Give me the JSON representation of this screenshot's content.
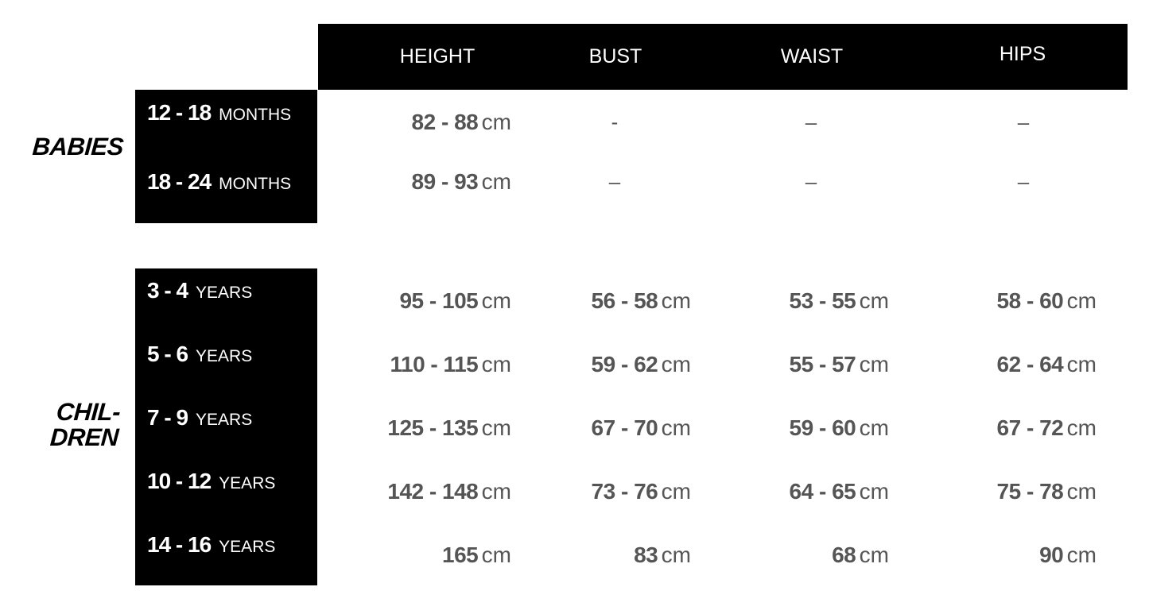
{
  "columns": [
    "HEIGHT",
    "BUST",
    "WAIST",
    "HIPS"
  ],
  "groups": [
    {
      "label": "BABIES",
      "rows": [
        {
          "range": "12 - 18",
          "unit": "MONTHS",
          "values": [
            {
              "n": "82 - 88",
              "u": "cm"
            },
            {
              "dash": "-"
            },
            {
              "dash": "–"
            },
            {
              "dash": "–"
            }
          ]
        },
        {
          "range": "18 - 24",
          "unit": "MONTHS",
          "values": [
            {
              "n": "89 - 93",
              "u": "cm"
            },
            {
              "dash": "–"
            },
            {
              "dash": "–"
            },
            {
              "dash": "–"
            }
          ]
        }
      ]
    },
    {
      "label_line1": "CHIL-",
      "label_line2": "DREN",
      "rows": [
        {
          "range": "3 - 4",
          "unit": "YEARS",
          "values": [
            {
              "n": "95 - 105",
              "u": "cm"
            },
            {
              "n": "56 - 58",
              "u": "cm"
            },
            {
              "n": "53 - 55",
              "u": "cm"
            },
            {
              "n": "58 - 60",
              "u": "cm"
            }
          ]
        },
        {
          "range": "5 - 6",
          "unit": "YEARS",
          "values": [
            {
              "n": "110 - 115",
              "u": "cm"
            },
            {
              "n": "59 - 62",
              "u": "cm"
            },
            {
              "n": "55 - 57",
              "u": "cm"
            },
            {
              "n": "62 - 64",
              "u": "cm"
            }
          ]
        },
        {
          "range": "7 - 9",
          "unit": "YEARS",
          "values": [
            {
              "n": "125 - 135",
              "u": "cm"
            },
            {
              "n": "67 - 70",
              "u": "cm"
            },
            {
              "n": "59 - 60",
              "u": "cm"
            },
            {
              "n": "67 - 72",
              "u": "cm"
            }
          ]
        },
        {
          "range": "10 - 12",
          "unit": "YEARS",
          "values": [
            {
              "n": "142 - 148",
              "u": "cm"
            },
            {
              "n": "73 - 76",
              "u": "cm"
            },
            {
              "n": "64 - 65",
              "u": "cm"
            },
            {
              "n": "75 - 78",
              "u": "cm"
            }
          ]
        },
        {
          "range": "14 - 16",
          "unit": "YEARS",
          "values": [
            {
              "n": "165",
              "u": "cm"
            },
            {
              "n": "83",
              "u": "cm"
            },
            {
              "n": "68",
              "u": "cm"
            },
            {
              "n": "90",
              "u": "cm"
            }
          ]
        }
      ]
    }
  ]
}
